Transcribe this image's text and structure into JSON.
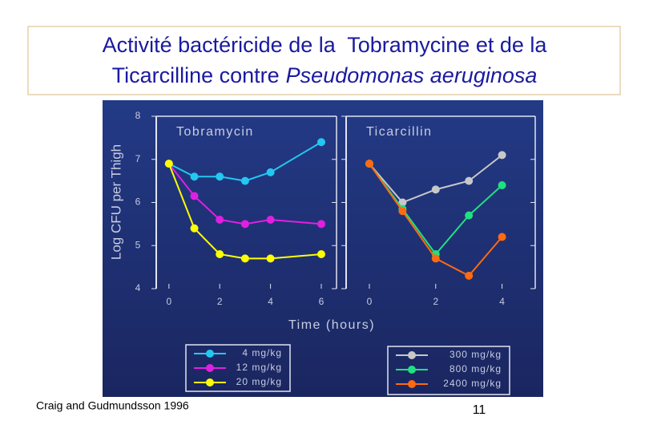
{
  "slide": {
    "title_lines": [
      "Activité bactéricide de la  Tobramycine et de la",
      "Ticarcilline contre"
    ],
    "title_italic": "Pseudomonas aeruginosa",
    "citation": "Craig and Gudmundsson 1996",
    "page": "11"
  },
  "figure": {
    "xlabel": "Time (hours)",
    "ylabel": "Log CFU per Thigh"
  },
  "chart_data": [
    {
      "type": "line",
      "title": "Tobramycin",
      "x": [
        0,
        1,
        2,
        3,
        4,
        6
      ],
      "xlim": [
        -0.5,
        6.6
      ],
      "xticks": [
        0,
        2,
        4,
        6
      ],
      "ylim": [
        4,
        8
      ],
      "yticks": [
        4,
        5,
        6,
        7,
        8
      ],
      "series": [
        {
          "name": "4 mg/kg",
          "color": "#22c8f0",
          "values": [
            6.9,
            6.6,
            6.6,
            6.5,
            6.7,
            7.4
          ]
        },
        {
          "name": "12 mg/kg",
          "color": "#e020e0",
          "values": [
            6.9,
            6.15,
            5.6,
            5.5,
            5.6,
            5.5
          ]
        },
        {
          "name": "20 mg/kg",
          "color": "#ffff00",
          "values": [
            6.9,
            5.4,
            4.8,
            4.7,
            4.7,
            4.8
          ]
        }
      ]
    },
    {
      "type": "line",
      "title": "Ticarcillin",
      "x": [
        0,
        1,
        2,
        3,
        4
      ],
      "xlim": [
        -0.7,
        5
      ],
      "xticks": [
        0,
        2,
        4
      ],
      "ylim": [
        4,
        8
      ],
      "yticks": [
        4,
        5,
        6,
        7,
        8
      ],
      "series": [
        {
          "name": "300 mg/kg",
          "color": "#c8c8c8",
          "values": [
            6.9,
            6.0,
            6.3,
            6.5,
            7.1
          ]
        },
        {
          "name": "800 mg/kg",
          "color": "#20e080",
          "values": [
            6.9,
            5.85,
            4.8,
            5.7,
            6.4
          ]
        },
        {
          "name": "2400 mg/kg",
          "color": "#ff6a10",
          "values": [
            6.9,
            5.8,
            4.7,
            4.3,
            5.2
          ]
        }
      ]
    }
  ]
}
